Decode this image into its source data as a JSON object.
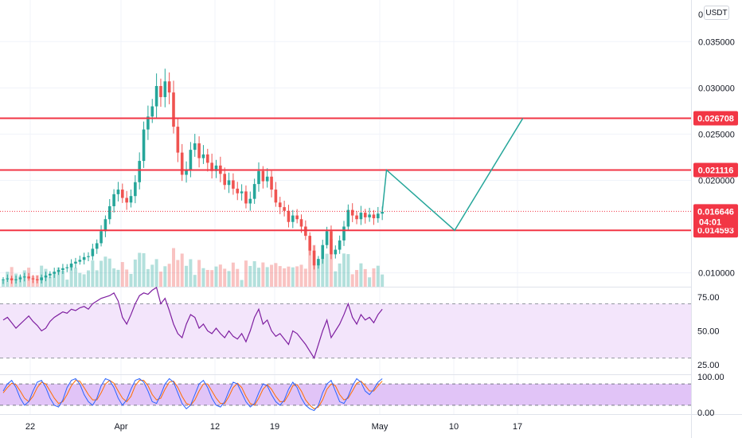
{
  "currency": "USDT",
  "colors": {
    "up": "#26a69a",
    "down": "#ef5350",
    "level_line": "#f23645",
    "projection": "#26a69a",
    "rsi_line": "#7e1fa0",
    "rsi_band": "#f3e5fb",
    "stoch_k": "#2962ff",
    "stoch_d": "#ff6d00",
    "stoch_band": "#e1c4f7",
    "grid": "#f0f3fa"
  },
  "chart_data": {
    "type": "candlestick",
    "price_axis": {
      "ticks": [
        "0.035000",
        "0.030000",
        "0.025000",
        "0.020000",
        "0.010000"
      ],
      "top_partial_label": "0",
      "range": [
        0.0085,
        0.0395
      ]
    },
    "time_axis": {
      "labels": [
        "22",
        "Apr",
        "12",
        "19",
        "May",
        "10",
        "17"
      ]
    },
    "levels": [
      {
        "name": "resistance-1",
        "label": "0.026708",
        "value": 0.026708
      },
      {
        "name": "resistance-2",
        "label": "0.021116",
        "value": 0.021116
      },
      {
        "name": "support",
        "label": "0.014593",
        "value": 0.014593
      }
    ],
    "last_price": {
      "label": "0.016646",
      "countdown": "04:01",
      "value": 0.016646
    },
    "close_series": [
      0.0093,
      0.0094,
      0.0092,
      0.0093,
      0.0095,
      0.0096,
      0.0094,
      0.0093,
      0.0092,
      0.0095,
      0.0097,
      0.0099,
      0.0101,
      0.0103,
      0.0105,
      0.0106,
      0.011,
      0.0112,
      0.0114,
      0.0117,
      0.0118,
      0.0126,
      0.0132,
      0.0145,
      0.0158,
      0.0172,
      0.0185,
      0.019,
      0.0181,
      0.0176,
      0.0183,
      0.0198,
      0.0221,
      0.0255,
      0.0269,
      0.028,
      0.0302,
      0.029,
      0.0307,
      0.0295,
      0.0258,
      0.023,
      0.0206,
      0.0212,
      0.0233,
      0.024,
      0.0224,
      0.0228,
      0.0219,
      0.021,
      0.0216,
      0.0207,
      0.0195,
      0.02,
      0.0191,
      0.0186,
      0.0188,
      0.0175,
      0.018,
      0.0196,
      0.021,
      0.0199,
      0.0204,
      0.019,
      0.0176,
      0.0171,
      0.0167,
      0.0155,
      0.0162,
      0.0158,
      0.015,
      0.014,
      0.0124,
      0.0108,
      0.0115,
      0.013,
      0.0145,
      0.012,
      0.0125,
      0.0135,
      0.015,
      0.0168,
      0.0162,
      0.0158,
      0.0165,
      0.016,
      0.0163,
      0.0159,
      0.0164,
      0.0166
    ],
    "projection_path": [
      {
        "x_index": 89,
        "y": 0.016646
      },
      {
        "x_index": 90,
        "y": 0.021116
      },
      {
        "x_index": 106,
        "y": 0.014593
      },
      {
        "x_index": 122,
        "y": 0.026708
      }
    ],
    "rsi": {
      "ticks": [
        "75.00",
        "50.00",
        "25.00"
      ],
      "tick_values": [
        75,
        50,
        25
      ],
      "range": [
        18,
        82
      ],
      "band": [
        70,
        30
      ],
      "values": [
        58,
        60,
        56,
        52,
        55,
        58,
        61,
        57,
        54,
        50,
        52,
        57,
        60,
        62,
        64,
        63,
        66,
        65,
        67,
        68,
        66,
        70,
        72,
        74,
        75,
        76,
        78,
        72,
        60,
        55,
        62,
        70,
        76,
        78,
        77,
        80,
        82,
        70,
        74,
        65,
        55,
        48,
        45,
        55,
        62,
        60,
        52,
        55,
        50,
        48,
        52,
        48,
        45,
        50,
        46,
        44,
        48,
        42,
        50,
        60,
        66,
        55,
        58,
        50,
        46,
        48,
        44,
        40,
        50,
        48,
        44,
        40,
        35,
        30,
        40,
        50,
        58,
        45,
        50,
        55,
        62,
        70,
        60,
        55,
        62,
        58,
        60,
        56,
        62,
        66
      ]
    },
    "stoch": {
      "ticks": [
        "100.00",
        "0.00"
      ],
      "tick_values": [
        100,
        0
      ],
      "range": [
        -5,
        105
      ],
      "band": [
        80,
        20
      ],
      "k": [
        60,
        80,
        90,
        70,
        40,
        20,
        30,
        60,
        85,
        90,
        70,
        40,
        20,
        15,
        35,
        70,
        90,
        95,
        80,
        50,
        30,
        20,
        40,
        75,
        95,
        90,
        70,
        40,
        20,
        35,
        65,
        90,
        95,
        85,
        60,
        30,
        25,
        50,
        80,
        95,
        85,
        55,
        25,
        10,
        20,
        50,
        80,
        90,
        70,
        40,
        20,
        15,
        30,
        60,
        85,
        80,
        55,
        30,
        15,
        25,
        55,
        80,
        75,
        50,
        30,
        20,
        35,
        65,
        85,
        70,
        40,
        20,
        10,
        5,
        20,
        55,
        80,
        90,
        60,
        30,
        25,
        45,
        75,
        95,
        85,
        60,
        50,
        65,
        85,
        95
      ],
      "d": [
        55,
        70,
        82,
        78,
        60,
        40,
        30,
        45,
        70,
        85,
        80,
        60,
        40,
        25,
        30,
        50,
        75,
        90,
        88,
        70,
        50,
        35,
        35,
        55,
        80,
        90,
        82,
        60,
        40,
        30,
        45,
        75,
        90,
        90,
        75,
        50,
        35,
        40,
        65,
        85,
        88,
        70,
        45,
        25,
        20,
        35,
        60,
        80,
        80,
        60,
        40,
        25,
        25,
        45,
        70,
        82,
        70,
        45,
        25,
        20,
        40,
        65,
        78,
        65,
        45,
        30,
        30,
        50,
        75,
        78,
        60,
        35,
        20,
        10,
        15,
        35,
        65,
        80,
        75,
        50,
        35,
        40,
        60,
        82,
        88,
        75,
        60,
        60,
        75,
        88
      ]
    }
  }
}
